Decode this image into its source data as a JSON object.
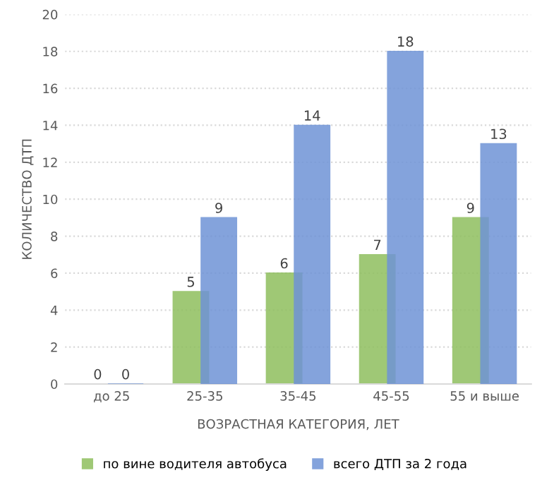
{
  "chart_data": {
    "type": "bar",
    "xlabel": "ВОЗРАСТНАЯ КАТЕГОРИЯ, ЛЕТ",
    "ylabel": "КОЛИЧЕСТВО ДТП",
    "categories": [
      "до 25",
      "25-35",
      "35-45",
      "45-55",
      "55 и выше"
    ],
    "series": [
      {
        "name": "по вине водителя автобуса",
        "color": "#8fbf5e",
        "values": [
          0,
          5,
          6,
          7,
          9
        ]
      },
      {
        "name": "всего ДТП за 2 года",
        "color": "#6f93d6",
        "values": [
          0,
          9,
          14,
          18,
          13
        ]
      }
    ],
    "ylim": [
      0,
      20
    ],
    "yticks": [
      0,
      2,
      4,
      6,
      8,
      10,
      12,
      14,
      16,
      18,
      20
    ],
    "grid": "y",
    "legend": "bottom",
    "data_labels": true
  }
}
